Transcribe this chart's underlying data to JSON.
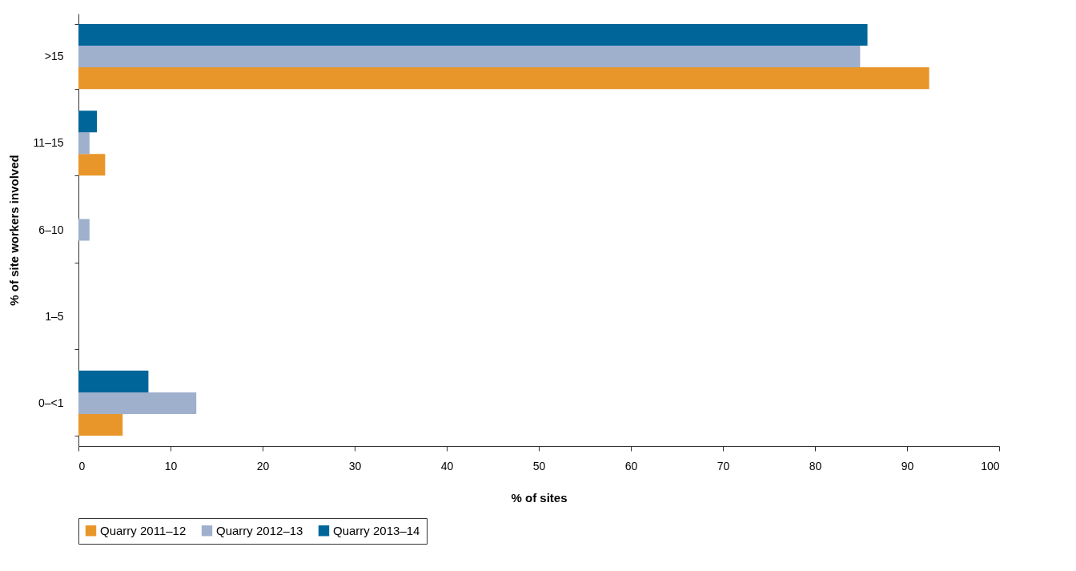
{
  "chart_data": {
    "type": "bar",
    "orientation": "horizontal",
    "xlabel": "% of sites",
    "ylabel": "% of site workers involved",
    "categories": [
      ">15",
      "11–15",
      "6–10",
      "1–5",
      "0–<1"
    ],
    "series": [
      {
        "name": "Quarry 2011–12",
        "color": "#e8962a",
        "values": [
          92.4,
          2.9,
          0,
          0,
          4.8
        ]
      },
      {
        "name": "Quarry 2012–13",
        "color": "#9fb0cc",
        "values": [
          84.9,
          1.2,
          1.2,
          0,
          12.8
        ]
      },
      {
        "name": "Quarry 2013–14",
        "color": "#006699",
        "values": [
          85.7,
          2.0,
          0,
          0,
          7.6
        ]
      }
    ],
    "xlim": [
      0,
      100
    ],
    "xticks": [
      0,
      10,
      20,
      30,
      40,
      50,
      60,
      70,
      80,
      90,
      100
    ],
    "grid": false,
    "legend": "bottom"
  }
}
